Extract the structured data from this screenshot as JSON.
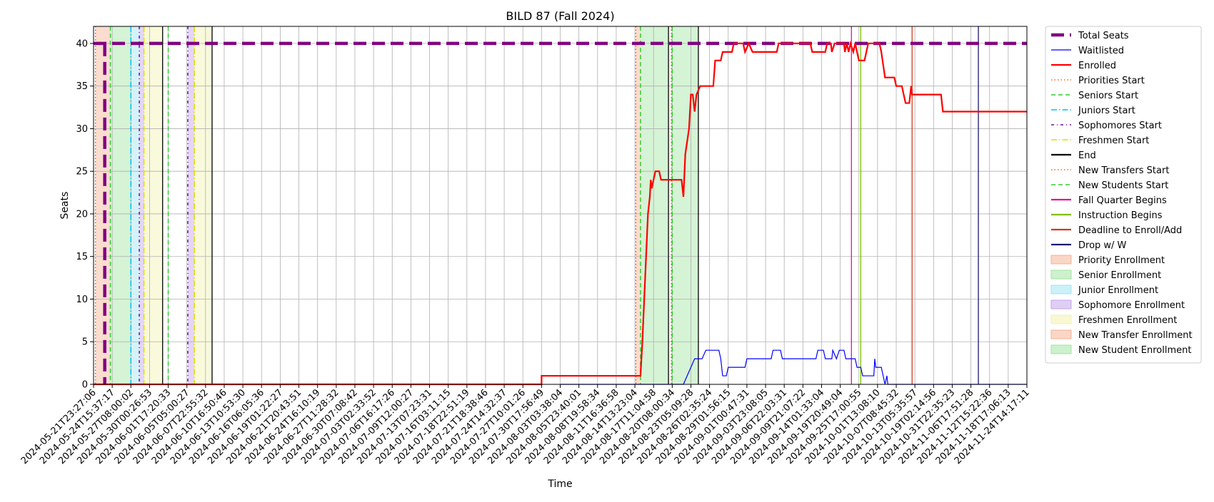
{
  "chart_data": {
    "type": "line",
    "title": "BILD 87 (Fall 2024)",
    "xlabel": "Time",
    "ylabel": "Seats",
    "x_range": [
      "2024-05-21T23:27:06",
      "2024-11-27T14:17:11"
    ],
    "ylim": [
      0,
      42
    ],
    "y_ticks": [
      0,
      5,
      10,
      15,
      20,
      25,
      30,
      35,
      40
    ],
    "grid": true,
    "legend_position": "outside-right",
    "x_ticks": [
      "2024-05-21T23:27:06",
      "2024-05-24T15:37:17",
      "2024-05-27T08:00:02",
      "2024-05-30T00:26:53",
      "2024-06-01T17:20:33",
      "2024-06-05T05:00:27",
      "2024-06-07T22:55:32",
      "2024-06-10T16:50:46",
      "2024-06-13T10:53:30",
      "2024-06-16T06:05:36",
      "2024-06-19T01:22:27",
      "2024-06-21T20:43:51",
      "2024-06-24T16:10:19",
      "2024-06-27T11:28:32",
      "2024-06-30T07:08:42",
      "2024-07-03T02:33:52",
      "2024-07-06T16:17:26",
      "2024-07-09T12:00:27",
      "2024-07-13T07:23:31",
      "2024-07-16T03:11:15",
      "2024-07-18T22:51:19",
      "2024-07-21T18:38:46",
      "2024-07-24T14:32:37",
      "2024-07-27T10:01:26",
      "2024-07-30T17:56:49",
      "2024-08-03T03:38:04",
      "2024-08-05T23:40:01",
      "2024-08-08T19:58:34",
      "2024-08-11T16:36:58",
      "2024-08-14T13:23:04",
      "2024-08-17T11:04:58",
      "2024-08-20T08:00:34",
      "2024-08-23T05:09:28",
      "2024-08-26T02:35:24",
      "2024-08-29T01:56:15",
      "2024-09-01T00:47:31",
      "2024-09-03T23:08:05",
      "2024-09-06T22:03:31",
      "2024-09-09T21:07:22",
      "2024-09-14T01:33:04",
      "2024-09-19T20:49:04",
      "2024-09-25T17:00:55",
      "2024-10-01T13:08:10",
      "2024-10-07T08:45:32",
      "2024-10-13T05:35:57",
      "2024-10-19T02:14:56",
      "2024-10-31T22:35:23",
      "2024-11-06T17:51:28",
      "2024-11-12T15:22:36",
      "2024-11-18T17:06:13",
      "2024-11-24T14:17:11"
    ],
    "series": [
      {
        "name": "Total Seats",
        "color": "#800080",
        "style": "dashed-thick",
        "points": [
          [
            0,
            40
          ],
          [
            50,
            40
          ]
        ]
      },
      {
        "name": "Waitlisted",
        "color": "#0000ff",
        "style": "solid-thin",
        "points": [
          [
            25,
            0
          ],
          [
            31.6,
            0
          ],
          [
            31.8,
            1
          ],
          [
            32,
            2
          ],
          [
            32.2,
            3
          ],
          [
            32.6,
            3
          ],
          [
            32.8,
            4
          ],
          [
            33.5,
            4
          ],
          [
            33.6,
            3
          ],
          [
            33.7,
            1
          ],
          [
            33.9,
            1
          ],
          [
            34,
            2
          ],
          [
            34.9,
            2
          ],
          [
            35,
            3
          ],
          [
            35.9,
            3
          ],
          [
            36,
            3
          ],
          [
            36.3,
            3
          ],
          [
            36.4,
            4
          ],
          [
            36.8,
            4
          ],
          [
            36.9,
            3
          ],
          [
            38.7,
            3
          ],
          [
            38.8,
            4
          ],
          [
            39.1,
            4
          ],
          [
            39.2,
            3
          ],
          [
            39.55,
            3
          ],
          [
            39.6,
            4
          ],
          [
            39.8,
            3
          ],
          [
            39.95,
            4
          ],
          [
            40.2,
            4
          ],
          [
            40.3,
            3
          ],
          [
            40.8,
            3
          ],
          [
            40.9,
            2
          ],
          [
            41.1,
            2
          ],
          [
            41.2,
            1
          ],
          [
            41.8,
            1
          ],
          [
            41.85,
            3
          ],
          [
            41.9,
            2
          ],
          [
            42.2,
            2
          ],
          [
            42.3,
            1
          ],
          [
            42.4,
            0
          ],
          [
            42.5,
            1
          ],
          [
            42.55,
            0
          ],
          [
            50,
            0
          ]
        ]
      },
      {
        "name": "Enrolled",
        "color": "#ff0000",
        "style": "solid",
        "points": [
          [
            0,
            0
          ],
          [
            24,
            0
          ],
          [
            24,
            1
          ],
          [
            29.3,
            1
          ],
          [
            29.4,
            5
          ],
          [
            29.5,
            10
          ],
          [
            29.6,
            15
          ],
          [
            29.7,
            20
          ],
          [
            29.8,
            22
          ],
          [
            29.85,
            24
          ],
          [
            29.9,
            23
          ],
          [
            30,
            24
          ],
          [
            30.1,
            25
          ],
          [
            30.3,
            25
          ],
          [
            30.4,
            24
          ],
          [
            31.5,
            24
          ],
          [
            31.6,
            22
          ],
          [
            31.7,
            27
          ],
          [
            31.9,
            30
          ],
          [
            32,
            34
          ],
          [
            32.1,
            34
          ],
          [
            32.2,
            32
          ],
          [
            32.3,
            34
          ],
          [
            32.5,
            35
          ],
          [
            33.2,
            35
          ],
          [
            33.3,
            38
          ],
          [
            33.6,
            38
          ],
          [
            33.7,
            39
          ],
          [
            34.2,
            39
          ],
          [
            34.3,
            40
          ],
          [
            34.8,
            40
          ],
          [
            34.9,
            39
          ],
          [
            35.1,
            40
          ],
          [
            35.3,
            39
          ],
          [
            36.6,
            39
          ],
          [
            36.7,
            40
          ],
          [
            38.4,
            40
          ],
          [
            38.5,
            39
          ],
          [
            39.2,
            39
          ],
          [
            39.3,
            40
          ],
          [
            39.5,
            40
          ],
          [
            39.55,
            39
          ],
          [
            39.7,
            40
          ],
          [
            40.2,
            40
          ],
          [
            40.25,
            39
          ],
          [
            40.35,
            40
          ],
          [
            40.45,
            39
          ],
          [
            40.55,
            40
          ],
          [
            40.7,
            39
          ],
          [
            40.8,
            40
          ],
          [
            41,
            38
          ],
          [
            41.3,
            38
          ],
          [
            41.4,
            39
          ],
          [
            41.5,
            40
          ],
          [
            42.1,
            40
          ],
          [
            42.2,
            39
          ],
          [
            42.4,
            36
          ],
          [
            42.9,
            36
          ],
          [
            43,
            35
          ],
          [
            43.3,
            35
          ],
          [
            43.4,
            34
          ],
          [
            43.5,
            33
          ],
          [
            43.7,
            33
          ],
          [
            43.8,
            35
          ],
          [
            43.85,
            34
          ],
          [
            45.4,
            34
          ],
          [
            45.5,
            32
          ],
          [
            50,
            32
          ]
        ]
      }
    ],
    "markers": [
      {
        "name": "Priorities Start",
        "color": "#ff4500",
        "style": "dotted",
        "x": [
          0.1,
          29.05
        ]
      },
      {
        "name": "Seniors Start",
        "color": "#32cd32",
        "style": "dashed",
        "x": [
          0.9,
          29.3
        ]
      },
      {
        "name": "Juniors Start",
        "color": "#00bfff",
        "style": "dashdot",
        "x": [
          2.0
        ]
      },
      {
        "name": "Sophomores Start",
        "color": "#6a0dad",
        "style": "dashdot-dense",
        "x": [
          2.45,
          5.05
        ]
      },
      {
        "name": "Freshmen Start",
        "color": "#dddd00",
        "style": "dashdot",
        "x": [
          2.7,
          5.4
        ]
      },
      {
        "name": "End",
        "color": "#000000",
        "style": "solid",
        "x": [
          3.7,
          6.35,
          30.8,
          32.4
        ]
      },
      {
        "name": "New Transfers Start",
        "color": "#ff4500",
        "style": "dotted",
        "x": [
          30.95
        ]
      },
      {
        "name": "New Students Start",
        "color": "#32cd32",
        "style": "dashed",
        "x": [
          4.0,
          31.0
        ]
      },
      {
        "name": "Fall Quarter Begins",
        "color": "#e0119d",
        "style": "solid",
        "x": [
          40.6
        ]
      },
      {
        "name": "Instruction Begins",
        "color": "#7fbf00",
        "style": "solid",
        "x": [
          41.1
        ]
      },
      {
        "name": "Deadline to Enroll/Add",
        "color": "#d03a1c",
        "style": "solid",
        "x": [
          43.85
        ]
      },
      {
        "name": "Drop w/ W",
        "color": "#191970",
        "style": "solid",
        "x": [
          47.4
        ]
      }
    ],
    "spans": [
      {
        "name": "Priority Enrollment",
        "color": "#f4a582",
        "ranges": [
          [
            0.1,
            0.9
          ],
          [
            29.05,
            29.3
          ]
        ]
      },
      {
        "name": "Senior Enrollment",
        "color": "#90e090",
        "ranges": [
          [
            0.9,
            2.0
          ],
          [
            29.3,
            30.8
          ]
        ]
      },
      {
        "name": "Junior Enrollment",
        "color": "#8fdff0",
        "ranges": [
          [
            2.0,
            2.45
          ]
        ]
      },
      {
        "name": "Sophomore Enrollment",
        "color": "#b794e8",
        "ranges": [
          [
            2.45,
            2.7
          ],
          [
            5.05,
            5.4
          ]
        ]
      },
      {
        "name": "Freshmen Enrollment",
        "color": "#f0f0a0",
        "ranges": [
          [
            2.7,
            3.7
          ],
          [
            5.4,
            6.35
          ]
        ]
      },
      {
        "name": "New Transfer Enrollment",
        "color": "#f4a582",
        "ranges": [
          [
            30.95,
            31.0
          ]
        ]
      },
      {
        "name": "New Student Enrollment",
        "color": "#90e090",
        "ranges": [
          [
            4.0,
            4.0
          ],
          [
            31.0,
            32.4
          ]
        ]
      }
    ],
    "legend": [
      {
        "label": "Total Seats",
        "kind": "line",
        "color": "#800080",
        "style": "dashed-thick"
      },
      {
        "label": "Waitlisted",
        "kind": "line",
        "color": "#0000ff",
        "style": "solid-thin"
      },
      {
        "label": "Enrolled",
        "kind": "line",
        "color": "#ff0000",
        "style": "solid"
      },
      {
        "label": "Priorities Start",
        "kind": "line",
        "color": "#ff4500",
        "style": "dotted"
      },
      {
        "label": "Seniors Start",
        "kind": "line",
        "color": "#32cd32",
        "style": "dashed"
      },
      {
        "label": "Juniors Start",
        "kind": "line",
        "color": "#00bfff",
        "style": "dashdot"
      },
      {
        "label": "Sophomores Start",
        "kind": "line",
        "color": "#6a0dad",
        "style": "dashdot-dense"
      },
      {
        "label": "Freshmen Start",
        "kind": "line",
        "color": "#dddd00",
        "style": "dashdot"
      },
      {
        "label": "End",
        "kind": "line",
        "color": "#000000",
        "style": "solid"
      },
      {
        "label": "New Transfers Start",
        "kind": "line",
        "color": "#ff4500",
        "style": "dotted"
      },
      {
        "label": "New Students Start",
        "kind": "line",
        "color": "#32cd32",
        "style": "dashed"
      },
      {
        "label": "Fall Quarter Begins",
        "kind": "line",
        "color": "#e0119d",
        "style": "solid"
      },
      {
        "label": "Instruction Begins",
        "kind": "line",
        "color": "#7fbf00",
        "style": "solid"
      },
      {
        "label": "Deadline to Enroll/Add",
        "kind": "line",
        "color": "#d03a1c",
        "style": "solid"
      },
      {
        "label": "Drop w/ W",
        "kind": "line",
        "color": "#191970",
        "style": "solid"
      },
      {
        "label": "Priority Enrollment",
        "kind": "patch",
        "color": "#f4a582"
      },
      {
        "label": "Senior Enrollment",
        "kind": "patch",
        "color": "#90e090"
      },
      {
        "label": "Junior Enrollment",
        "kind": "patch",
        "color": "#8fdff0"
      },
      {
        "label": "Sophomore Enrollment",
        "kind": "patch",
        "color": "#b794e8"
      },
      {
        "label": "Freshmen Enrollment",
        "kind": "patch",
        "color": "#f0f0a0"
      },
      {
        "label": "New Transfer Enrollment",
        "kind": "patch",
        "color": "#f4a582"
      },
      {
        "label": "New Student Enrollment",
        "kind": "patch",
        "color": "#90e090"
      }
    ]
  }
}
